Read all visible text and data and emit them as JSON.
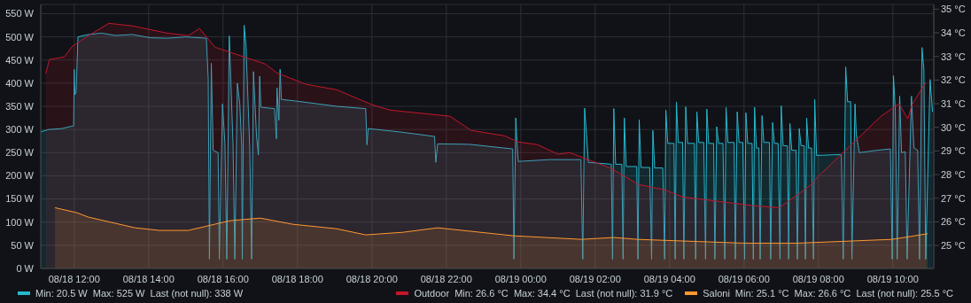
{
  "chart_data": {
    "type": "area",
    "xlim": [
      "--08-18T11:06",
      "--08-19T11:06"
    ],
    "xticks": [
      {
        "value": "--08-18T12:00",
        "label": "08/18 12:00"
      },
      {
        "value": "--08-18T14:00",
        "label": "08/18 14:00"
      },
      {
        "value": "--08-18T16:00",
        "label": "08/18 16:00"
      },
      {
        "value": "--08-18T18:00",
        "label": "08/18 18:00"
      },
      {
        "value": "--08-18T20:00",
        "label": "08/18 20:00"
      },
      {
        "value": "--08-18T22:00",
        "label": "08/18 22:00"
      },
      {
        "value": "--08-19T00:00",
        "label": "08/19 00:00"
      },
      {
        "value": "--08-19T02:00",
        "label": "08/19 02:00"
      },
      {
        "value": "--08-19T04:00",
        "label": "08/19 04:00"
      },
      {
        "value": "--08-19T06:00",
        "label": "08/19 06:00"
      },
      {
        "value": "--08-19T08:00",
        "label": "08/19 08:00"
      },
      {
        "value": "--08-19T10:00",
        "label": "08/19 10:00"
      }
    ],
    "ylim": [
      0,
      570
    ],
    "yticks": [
      {
        "value": 0,
        "label": "0 W"
      },
      {
        "value": 50,
        "label": "50 W"
      },
      {
        "value": 100,
        "label": "100 W"
      },
      {
        "value": 150,
        "label": "150 W"
      },
      {
        "value": 200,
        "label": "200 W"
      },
      {
        "value": 250,
        "label": "250 W"
      },
      {
        "value": 300,
        "label": "300 W"
      },
      {
        "value": 350,
        "label": "350 W"
      },
      {
        "value": 400,
        "label": "400 W"
      },
      {
        "value": 450,
        "label": "450 W"
      },
      {
        "value": 500,
        "label": "500 W"
      },
      {
        "value": 550,
        "label": "550 W"
      }
    ],
    "y2lim": [
      24.03,
      35.2
    ],
    "y2ticks": [
      {
        "value": 25,
        "label": "25 °C"
      },
      {
        "value": 26,
        "label": "26 °C"
      },
      {
        "value": 27,
        "label": "27 °C"
      },
      {
        "value": 28,
        "label": "28 °C"
      },
      {
        "value": 29,
        "label": "29 °C"
      },
      {
        "value": 30,
        "label": "30 °C"
      },
      {
        "value": 31,
        "label": "31 °C"
      },
      {
        "value": 32,
        "label": "32 °C"
      },
      {
        "value": 33,
        "label": "33 °C"
      },
      {
        "value": 34,
        "label": "34 °C"
      },
      {
        "value": 35,
        "label": "35 °C"
      }
    ],
    "grid": true,
    "legend": "bottom",
    "annotations": [
      "Min: 20.5 W  Max: 525 W  Last (not null): 338 W",
      "Min: 26.6 °C  Max: 34.4 °C  Last (not null): 31.9 °C",
      "Min: 25.1 °C  Max: 26.6 °C  Last (not null): 25.5 °C"
    ],
    "series": [
      {
        "color": "#26b8ce",
        "x": [
          "--08-18T11:06",
          "--08-18T11:19",
          "--08-18T11:40",
          "--08-18T11:59",
          "--08-18T12:00",
          "--08-18T12:01",
          "--08-18T12:03",
          "--08-18T12:06",
          "--08-18T12:23",
          "--08-18T12:44",
          "--08-18T13:06",
          "--08-18T13:34",
          "--08-18T14:03",
          "--08-18T14:31",
          "--08-18T15:00",
          "--08-18T15:33",
          "--08-18T15:36",
          "--08-18T15:38",
          "--08-18T15:41",
          "--08-18T15:44",
          "--08-18T15:52",
          "--08-18T15:54",
          "--08-18T15:59",
          "--08-18T16:03",
          "--08-18T16:06",
          "--08-18T16:10",
          "--08-18T16:16",
          "--08-18T16:19",
          "--08-18T16:23",
          "--08-18T16:27",
          "--08-18T16:30",
          "--08-18T16:31",
          "--08-18T16:34",
          "--08-18T16:37",
          "--08-18T16:43",
          "--08-18T16:46",
          "--08-18T16:49",
          "--08-18T16:54",
          "--08-18T16:57",
          "--08-18T16:59",
          "--08-18T17:01",
          "--08-18T17:23",
          "--08-18T17:26",
          "--08-18T17:27",
          "--08-18T17:30",
          "--08-18T17:32",
          "--08-18T17:34",
          "--08-18T18:06",
          "--08-18T19:03",
          "--08-18T19:50",
          "--08-18T19:52",
          "--08-18T19:54",
          "--08-18T20:43",
          "--08-18T21:41",
          "--08-18T21:43",
          "--08-18T21:46",
          "--08-18T22:37",
          "--08-18T23:47",
          "--08-18T23:49",
          "--08-18T23:52",
          "--08-18T23:54",
          "--08-18T23:56",
          "--08-19T00:46",
          "--08-19T01:37",
          "--08-19T01:40",
          "--08-19T01:43",
          "--08-19T01:46",
          "--08-19T01:49",
          "--08-19T02:26",
          "--08-19T02:28",
          "--08-19T02:30",
          "--08-19T02:33",
          "--08-19T02:43",
          "--08-19T02:45",
          "--08-19T02:47",
          "--08-19T02:50",
          "--08-19T03:07",
          "--08-19T03:09",
          "--08-19T03:11",
          "--08-19T03:14",
          "--08-19T03:28",
          "--08-19T03:31",
          "--08-19T03:33",
          "--08-19T03:36",
          "--08-19T03:49",
          "--08-19T03:52",
          "--08-19T03:54",
          "--08-19T03:57",
          "--08-19T04:07",
          "--08-19T04:09",
          "--08-19T04:11",
          "--08-19T04:14",
          "--08-19T04:21",
          "--08-19T04:23",
          "--08-19T04:26",
          "--08-19T04:29",
          "--08-19T04:40",
          "--08-19T04:42",
          "--08-19T04:44",
          "--08-19T04:47",
          "--08-19T04:55",
          "--08-19T04:58",
          "--08-19T05:00",
          "--08-19T05:03",
          "--08-19T05:11",
          "--08-19T05:13",
          "--08-19T05:16",
          "--08-19T05:19",
          "--08-19T05:26",
          "--08-19T05:29",
          "--08-19T05:31",
          "--08-19T05:34",
          "--08-19T05:44",
          "--08-19T05:46",
          "--08-19T05:49",
          "--08-19T05:52",
          "--08-19T05:58",
          "--08-19T06:01",
          "--08-19T06:03",
          "--08-19T06:06",
          "--08-19T06:13",
          "--08-19T06:15",
          "--08-19T06:17",
          "--08-19T06:20",
          "--08-19T06:24",
          "--08-19T06:26",
          "--08-19T06:29",
          "--08-19T06:32",
          "--08-19T06:41",
          "--08-19T06:43",
          "--08-19T06:46",
          "--08-19T06:49",
          "--08-19T06:55",
          "--08-19T06:58",
          "--08-19T07:00",
          "--08-19T07:03",
          "--08-19T07:10",
          "--08-19T07:12",
          "--08-19T07:14",
          "--08-19T07:17",
          "--08-19T07:24",
          "--08-19T07:26",
          "--08-19T07:29",
          "--08-19T07:32",
          "--08-19T07:37",
          "--08-19T07:39",
          "--08-19T07:41",
          "--08-19T07:44",
          "--08-19T07:49",
          "--08-19T07:52",
          "--08-19T07:54",
          "--08-19T07:57",
          "--08-19T08:37",
          "--08-19T08:40",
          "--08-19T08:44",
          "--08-19T08:47",
          "--08-19T08:52",
          "--08-19T08:54",
          "--08-19T08:59",
          "--08-19T09:01",
          "--08-19T09:06",
          "--08-19T09:34",
          "--08-19T09:56",
          "--08-19T09:59",
          "--08-19T10:01",
          "--08-19T10:04",
          "--08-19T10:07",
          "--08-19T10:11",
          "--08-19T10:14",
          "--08-19T10:20",
          "--08-19T10:23",
          "--08-19T10:30",
          "--08-19T10:34",
          "--08-19T10:40",
          "--08-19T10:43",
          "--08-19T10:47",
          "--08-19T10:50",
          "--08-19T10:53",
          "--08-19T11:00",
          "--08-19T11:04"
        ],
        "values": [
          295,
          300,
          302,
          308,
          430,
          375,
          380,
          500,
          505,
          508,
          503,
          505,
          498,
          497,
          500,
          497,
          410,
          20,
          443,
          255,
          250,
          20,
          355,
          270,
          20,
          502,
          270,
          20,
          400,
          355,
          265,
          20,
          525,
          480,
          260,
          20,
          425,
          285,
          245,
          415,
          348,
          345,
          280,
          390,
          320,
          430,
          365,
          360,
          350,
          345,
          267,
          302,
          295,
          285,
          229,
          269,
          268,
          258,
          20,
          325,
          270,
          231,
          235,
          235,
          20,
          346,
          290,
          229,
          225,
          20,
          345,
          225,
          225,
          20,
          325,
          220,
          220,
          20,
          321,
          218,
          218,
          20,
          298,
          217,
          217,
          20,
          342,
          270,
          270,
          20,
          359,
          272,
          272,
          20,
          349,
          270,
          270,
          20,
          338,
          272,
          272,
          20,
          344,
          270,
          270,
          20,
          306,
          270,
          270,
          20,
          348,
          272,
          272,
          20,
          338,
          272,
          272,
          20,
          336,
          270,
          270,
          20,
          348,
          260,
          260,
          20,
          330,
          272,
          272,
          20,
          315,
          270,
          270,
          20,
          351,
          265,
          265,
          20,
          313,
          255,
          255,
          20,
          302,
          265,
          265,
          20,
          325,
          260,
          260,
          20,
          365,
          244,
          246,
          20,
          435,
          360,
          360,
          20,
          355,
          290,
          250,
          255,
          258,
          20,
          416,
          340,
          20,
          372,
          250,
          252,
          20,
          372,
          260,
          255,
          20,
          477,
          430,
          20,
          408,
          338
        ]
      },
      {
        "name": "Outdoor",
        "color": "#c4162a",
        "axis": "y2",
        "x": [
          "--08-18T11:14",
          "--08-18T11:20",
          "--08-18T11:44",
          "--08-18T11:57",
          "--08-18T12:23",
          "--08-18T12:56",
          "--08-18T13:34",
          "--08-18T14:29",
          "--08-18T15:04",
          "--08-18T15:22",
          "--08-18T15:47",
          "--08-18T17:08",
          "--08-18T17:27",
          "--08-18T18:14",
          "--08-18T19:03",
          "--08-18T20:00",
          "--08-18T20:29",
          "--08-18T22:06",
          "--08-18T22:40",
          "--08-18T23:34",
          "--08-18T23:56",
          "--08-19T00:27",
          "--08-19T01:00",
          "--08-19T01:19",
          "--08-19T02:26",
          "--08-19T03:10",
          "--08-19T03:52",
          "--08-19T04:20",
          "--08-19T06:14",
          "--08-19T06:57",
          "--08-19T07:47",
          "--08-19T08:01",
          "--08-19T09:41",
          "--08-19T10:10",
          "--08-19T10:24",
          "--08-19T10:31",
          "--08-19T10:53"
        ],
        "values": [
          32.27,
          32.87,
          32.98,
          33.43,
          33.88,
          34.4,
          34.29,
          33.99,
          33.88,
          34.18,
          33.39,
          32.68,
          32.3,
          31.82,
          31.59,
          30.96,
          30.73,
          30.47,
          29.87,
          29.64,
          29.38,
          29.27,
          28.86,
          28.93,
          28.26,
          27.58,
          27.36,
          27.06,
          26.69,
          26.6,
          27.55,
          27.96,
          30.47,
          31.0,
          30.36,
          30.96,
          31.9
        ]
      },
      {
        "name": "Saloni",
        "color": "#ff9830",
        "axis": "y2",
        "x": [
          "--08-18T11:29",
          "--08-18T12:04",
          "--08-18T12:23",
          "--08-18T13:38",
          "--08-18T14:17",
          "--08-18T15:04",
          "--08-18T16:11",
          "--08-18T17:00",
          "--08-18T17:52",
          "--08-18T19:03",
          "--08-18T19:50",
          "--08-18T20:50",
          "--08-18T21:46",
          "--08-18T23:49",
          "--08-19T01:38",
          "--08-19T02:30",
          "--08-19T03:08",
          "--08-19T06:00",
          "--08-19T07:26",
          "--08-19T09:59",
          "--08-19T10:56"
        ],
        "values": [
          26.6,
          26.39,
          26.2,
          25.75,
          25.64,
          25.64,
          26.05,
          26.16,
          25.9,
          25.71,
          25.45,
          25.56,
          25.75,
          25.41,
          25.26,
          25.34,
          25.26,
          25.1,
          25.1,
          25.26,
          25.5
        ]
      }
    ]
  }
}
